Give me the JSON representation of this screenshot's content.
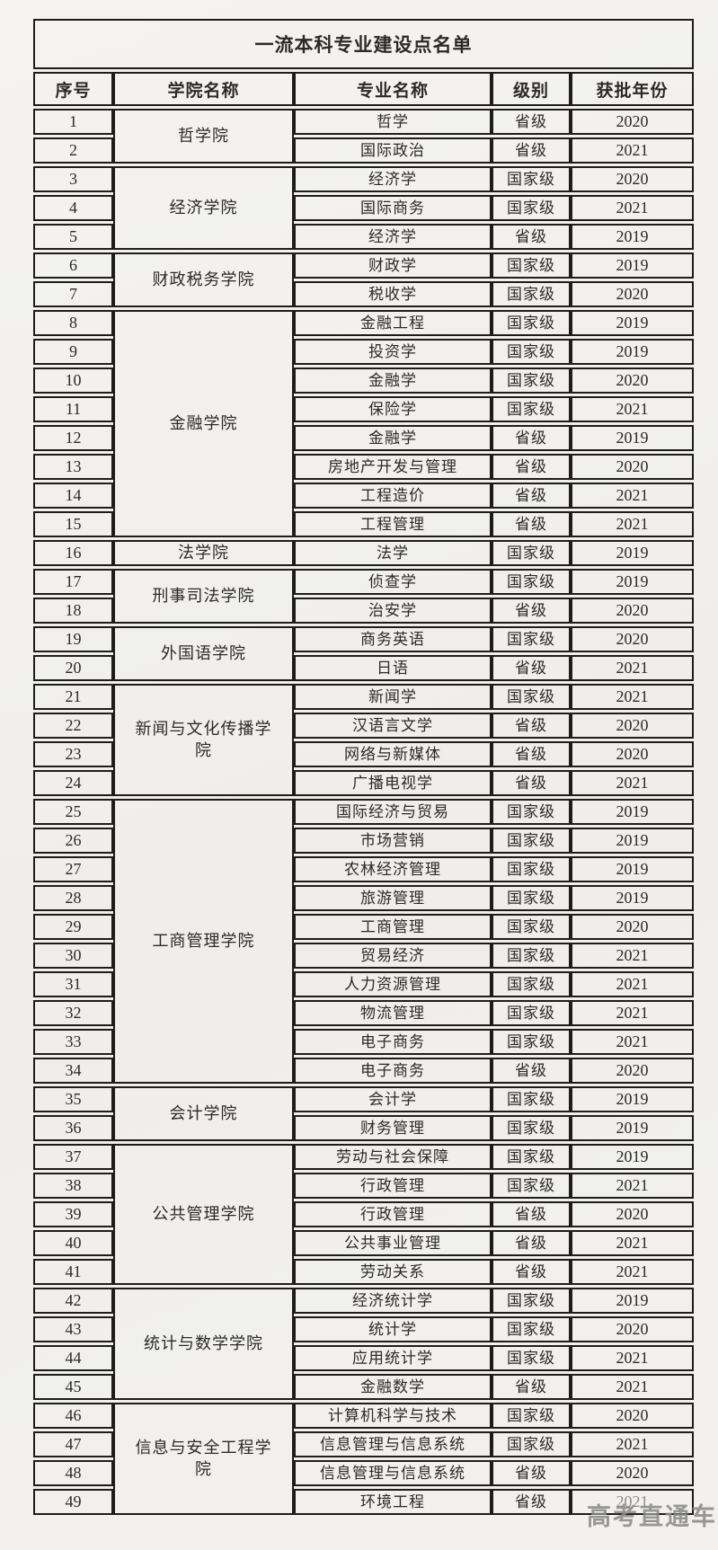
{
  "page": {
    "title": "一流本科专业建设点名单"
  },
  "watermark": "高考直通车",
  "colors": {
    "background": "#f2f1ef",
    "border": "#1e1d1c",
    "text": "#2b2a28",
    "watermark": "#8a8a8a"
  },
  "table": {
    "headers": [
      "序号",
      "学院名称",
      "专业名称",
      "级别",
      "获批年份"
    ],
    "groups": [
      {
        "college": "哲学院",
        "rows": [
          {
            "no": "1",
            "major": "哲学",
            "level": "省级",
            "year": "2020"
          },
          {
            "no": "2",
            "major": "国际政治",
            "level": "省级",
            "year": "2021"
          }
        ]
      },
      {
        "college": "经济学院",
        "rows": [
          {
            "no": "3",
            "major": "经济学",
            "level": "国家级",
            "year": "2020"
          },
          {
            "no": "4",
            "major": "国际商务",
            "level": "国家级",
            "year": "2021"
          },
          {
            "no": "5",
            "major": "经济学",
            "level": "省级",
            "year": "2019"
          }
        ]
      },
      {
        "college": "财政税务学院",
        "rows": [
          {
            "no": "6",
            "major": "财政学",
            "level": "国家级",
            "year": "2019"
          },
          {
            "no": "7",
            "major": "税收学",
            "level": "国家级",
            "year": "2020"
          }
        ]
      },
      {
        "college": "金融学院",
        "rows": [
          {
            "no": "8",
            "major": "金融工程",
            "level": "国家级",
            "year": "2019"
          },
          {
            "no": "9",
            "major": "投资学",
            "level": "国家级",
            "year": "2019"
          },
          {
            "no": "10",
            "major": "金融学",
            "level": "国家级",
            "year": "2020"
          },
          {
            "no": "11",
            "major": "保险学",
            "level": "国家级",
            "year": "2021"
          },
          {
            "no": "12",
            "major": "金融学",
            "level": "省级",
            "year": "2019"
          },
          {
            "no": "13",
            "major": "房地产开发与管理",
            "level": "省级",
            "year": "2020"
          },
          {
            "no": "14",
            "major": "工程造价",
            "level": "省级",
            "year": "2021"
          },
          {
            "no": "15",
            "major": "工程管理",
            "level": "省级",
            "year": "2021"
          }
        ]
      },
      {
        "college": "法学院",
        "rows": [
          {
            "no": "16",
            "major": "法学",
            "level": "国家级",
            "year": "2019"
          }
        ]
      },
      {
        "college": "刑事司法学院",
        "rows": [
          {
            "no": "17",
            "major": "侦查学",
            "level": "国家级",
            "year": "2019"
          },
          {
            "no": "18",
            "major": "治安学",
            "level": "省级",
            "year": "2020"
          }
        ]
      },
      {
        "college": "外国语学院",
        "rows": [
          {
            "no": "19",
            "major": "商务英语",
            "level": "国家级",
            "year": "2020"
          },
          {
            "no": "20",
            "major": "日语",
            "level": "省级",
            "year": "2021"
          }
        ]
      },
      {
        "college": "新闻与文化传播学院",
        "rows": [
          {
            "no": "21",
            "major": "新闻学",
            "level": "国家级",
            "year": "2021"
          },
          {
            "no": "22",
            "major": "汉语言文学",
            "level": "省级",
            "year": "2020"
          },
          {
            "no": "23",
            "major": "网络与新媒体",
            "level": "省级",
            "year": "2020"
          },
          {
            "no": "24",
            "major": "广播电视学",
            "level": "省级",
            "year": "2021"
          }
        ]
      },
      {
        "college": "工商管理学院",
        "rows": [
          {
            "no": "25",
            "major": "国际经济与贸易",
            "level": "国家级",
            "year": "2019"
          },
          {
            "no": "26",
            "major": "市场营销",
            "level": "国家级",
            "year": "2019"
          },
          {
            "no": "27",
            "major": "农林经济管理",
            "level": "国家级",
            "year": "2019"
          },
          {
            "no": "28",
            "major": "旅游管理",
            "level": "国家级",
            "year": "2019"
          },
          {
            "no": "29",
            "major": "工商管理",
            "level": "国家级",
            "year": "2020"
          },
          {
            "no": "30",
            "major": "贸易经济",
            "level": "国家级",
            "year": "2021"
          },
          {
            "no": "31",
            "major": "人力资源管理",
            "level": "国家级",
            "year": "2021"
          },
          {
            "no": "32",
            "major": "物流管理",
            "level": "国家级",
            "year": "2021"
          },
          {
            "no": "33",
            "major": "电子商务",
            "level": "国家级",
            "year": "2021"
          },
          {
            "no": "34",
            "major": "电子商务",
            "level": "省级",
            "year": "2020"
          }
        ]
      },
      {
        "college": "会计学院",
        "rows": [
          {
            "no": "35",
            "major": "会计学",
            "level": "国家级",
            "year": "2019"
          },
          {
            "no": "36",
            "major": "财务管理",
            "level": "国家级",
            "year": "2019"
          }
        ]
      },
      {
        "college": "公共管理学院",
        "rows": [
          {
            "no": "37",
            "major": "劳动与社会保障",
            "level": "国家级",
            "year": "2019"
          },
          {
            "no": "38",
            "major": "行政管理",
            "level": "国家级",
            "year": "2021"
          },
          {
            "no": "39",
            "major": "行政管理",
            "level": "省级",
            "year": "2020"
          },
          {
            "no": "40",
            "major": "公共事业管理",
            "level": "省级",
            "year": "2021"
          },
          {
            "no": "41",
            "major": "劳动关系",
            "level": "省级",
            "year": "2021"
          }
        ]
      },
      {
        "college": "统计与数学学院",
        "rows": [
          {
            "no": "42",
            "major": "经济统计学",
            "level": "国家级",
            "year": "2019"
          },
          {
            "no": "43",
            "major": "统计学",
            "level": "国家级",
            "year": "2020"
          },
          {
            "no": "44",
            "major": "应用统计学",
            "level": "国家级",
            "year": "2021"
          },
          {
            "no": "45",
            "major": "金融数学",
            "level": "省级",
            "year": "2021"
          }
        ]
      },
      {
        "college": "信息与安全工程学院",
        "rows": [
          {
            "no": "46",
            "major": "计算机科学与技术",
            "level": "国家级",
            "year": "2020"
          },
          {
            "no": "47",
            "major": "信息管理与信息系统",
            "level": "国家级",
            "year": "2021"
          },
          {
            "no": "48",
            "major": "信息管理与信息系统",
            "level": "省级",
            "year": "2020"
          },
          {
            "no": "49",
            "major": "环境工程",
            "level": "省级",
            "year": "2021",
            "year_obscured": true
          }
        ]
      }
    ]
  }
}
